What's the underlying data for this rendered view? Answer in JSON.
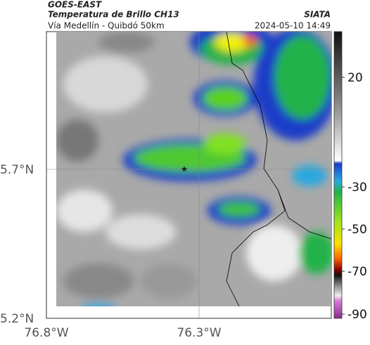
{
  "header": {
    "source": "GOES-EAST",
    "title": "Temperatura de Brillo CH13",
    "organization": "SIATA",
    "subtitle": "Vía Medellín - Quibdó 50km",
    "datetime": "2024-05-10 14:49"
  },
  "axes": {
    "latitude_labels": [
      "5.7°N",
      "5.2°N"
    ],
    "longitude_labels": [
      "76.8°W",
      "76.3°W"
    ]
  },
  "colorbar": {
    "ticks": [
      20,
      -30,
      -50,
      -70,
      -90
    ]
  }
}
